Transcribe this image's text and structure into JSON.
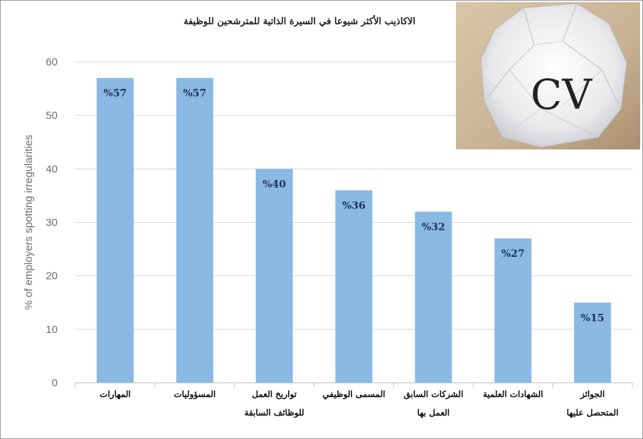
{
  "chart_data": {
    "type": "bar",
    "title": "الاكاذيب الأكثر شيوعا في السيرة الذاتية للمترشحين للوظيفة",
    "ylabel": "% of employers spotting irregularities",
    "xlabel": "",
    "ylim": [
      0,
      60
    ],
    "yticks": [
      0,
      10,
      20,
      30,
      40,
      50,
      60
    ],
    "grid": true,
    "legend": "none",
    "bar_color": "#8ab9e4",
    "categories": [
      [
        "المهارات"
      ],
      [
        "المسؤوليات"
      ],
      [
        "تواريخ العمل",
        "للوظائف السابقة"
      ],
      [
        "المسمى الوظيفي"
      ],
      [
        "الشركات السابق",
        "العمل بها"
      ],
      [
        "الشهادات العلمية"
      ],
      [
        "الجوائز",
        "المتحصل عليها"
      ]
    ],
    "values": [
      57,
      57,
      40,
      36,
      32,
      27,
      15
    ],
    "data_labels": [
      "%57",
      "%57",
      "%40",
      "%36",
      "%32",
      "%27",
      "%15"
    ]
  },
  "image": {
    "cv_text": "CV"
  }
}
